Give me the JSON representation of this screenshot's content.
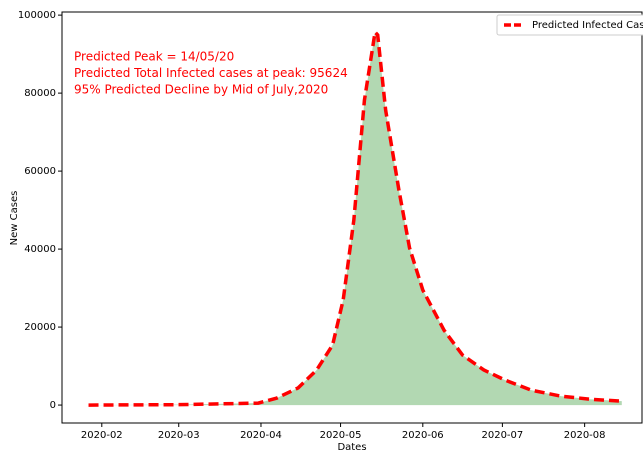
{
  "chart_data": {
    "type": "area-line",
    "xlabel": "Dates",
    "ylabel": "New Cases",
    "annotations": [
      "Predicted Peak = 14/05/20",
      "Predicted Total Infected cases at peak: 95624",
      "95% Predicted Decline by Mid of July,2020"
    ],
    "x": [
      "2020-01-27",
      "2020-03-01",
      "2020-03-31",
      "2020-04-07",
      "2020-04-15",
      "2020-04-22",
      "2020-04-28",
      "2020-05-02",
      "2020-05-06",
      "2020-05-10",
      "2020-05-14",
      "2020-05-15",
      "2020-05-18",
      "2020-05-23",
      "2020-05-27",
      "2020-06-01",
      "2020-06-09",
      "2020-06-16",
      "2020-06-24",
      "2020-07-02",
      "2020-07-12",
      "2020-07-23",
      "2020-08-03",
      "2020-08-15"
    ],
    "series": [
      {
        "name": "Predicted Infected Cases",
        "color": "#ff0000",
        "fill": "#b2d8b2",
        "values": [
          0,
          100,
          500,
          1800,
          4400,
          9000,
          15400,
          27000,
          47400,
          78200,
          95624,
          94900,
          75600,
          55100,
          40300,
          29500,
          19200,
          12800,
          9000,
          6400,
          3800,
          2300,
          1500,
          1000
        ]
      }
    ],
    "xlim": [
      "2020-01-17",
      "2020-08-23"
    ],
    "xticks": [
      "2020-02",
      "2020-03",
      "2020-04",
      "2020-05",
      "2020-06",
      "2020-07",
      "2020-08"
    ],
    "ylim": [
      -4600,
      100800
    ],
    "yticks": [
      0,
      20000,
      40000,
      60000,
      80000,
      100000
    ],
    "legend": "upper right"
  }
}
